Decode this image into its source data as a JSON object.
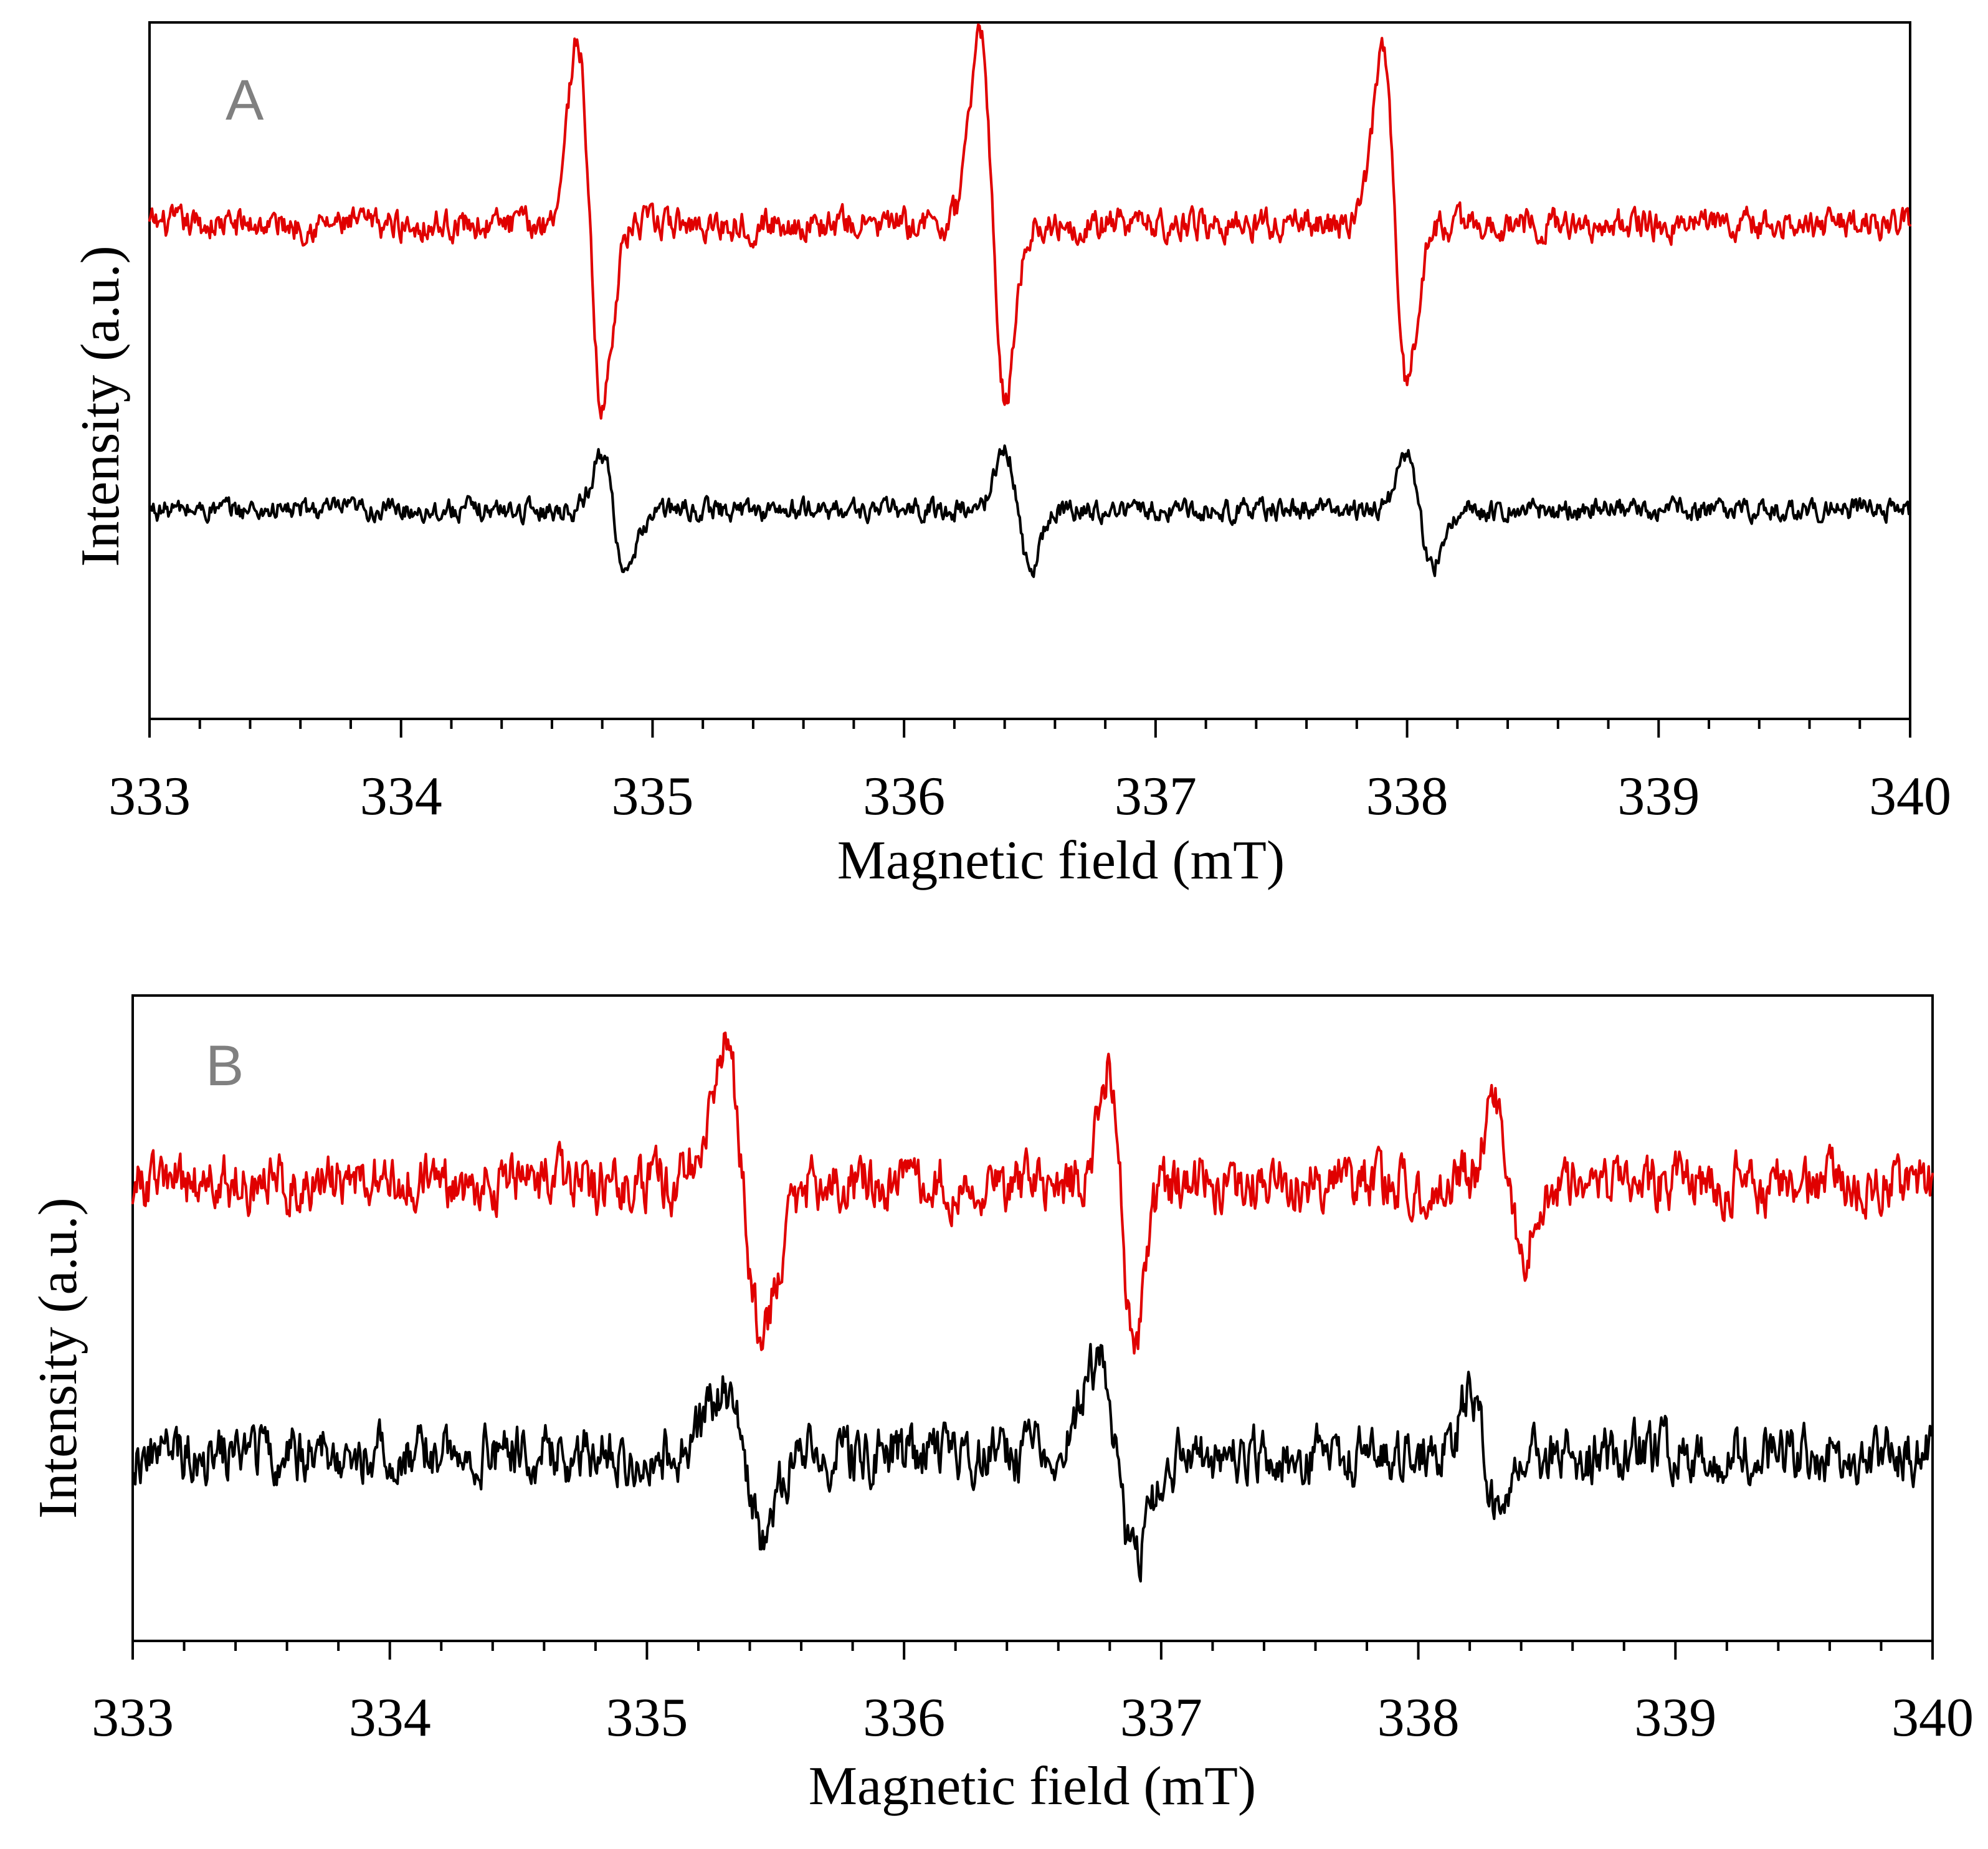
{
  "chart_data": [
    {
      "type": "line",
      "panel_label": "A",
      "xlabel": "Magnetic field (mT)",
      "ylabel": "Intensity (a.u.)",
      "xlim": [
        333,
        340
      ],
      "ylim": [
        -1,
        1
      ],
      "x_ticks": [
        "333",
        "334",
        "335",
        "336",
        "337",
        "338",
        "339",
        "340"
      ],
      "minor_ticks_per_major": 5,
      "grid": false,
      "legend": "none",
      "y_tick_labels": false,
      "series": [
        {
          "name": "upper trace",
          "color": "#e00000",
          "baseline": 0.42,
          "noise_amplitude": 0.035,
          "peaks": [
            {
              "x_max": 334.7,
              "x_min": 334.8,
              "max": 0.95,
              "min": -0.1
            },
            {
              "x_max": 336.3,
              "x_min": 336.4,
              "max": 1.0,
              "min": -0.06
            },
            {
              "x_max": 337.9,
              "x_min": 338.0,
              "max": 0.92,
              "min": -0.02
            }
          ]
        },
        {
          "name": "lower trace",
          "color": "#000000",
          "baseline": -0.4,
          "noise_amplitude": 0.025,
          "peaks": [
            {
              "x_max": 334.8,
              "x_min": 334.9,
              "max": -0.25,
              "min": -0.6
            },
            {
              "x_max": 336.4,
              "x_min": 336.5,
              "max": -0.22,
              "min": -0.56
            },
            {
              "x_max": 338.0,
              "x_min": 338.1,
              "max": -0.24,
              "min": -0.57
            }
          ]
        }
      ]
    },
    {
      "type": "line",
      "panel_label": "B",
      "xlabel": "Magnetic field (mT)",
      "ylabel": "Intensity (a.u.)",
      "xlim": [
        333,
        340
      ],
      "ylim": [
        -1,
        1
      ],
      "x_ticks": [
        "333",
        "334",
        "335",
        "336",
        "337",
        "338",
        "339",
        "340"
      ],
      "minor_ticks_per_major": 5,
      "grid": false,
      "legend": "none",
      "y_tick_labels": false,
      "series": [
        {
          "name": "upper trace",
          "color": "#e00000",
          "baseline": 0.42,
          "noise_amplitude": 0.07,
          "peaks": [
            {
              "x_max": 335.3,
              "x_min": 335.45,
              "max": 0.83,
              "min": -0.04
            },
            {
              "x_max": 336.8,
              "x_min": 336.9,
              "max": 0.71,
              "min": -0.15
            },
            {
              "x_max": 338.3,
              "x_min": 338.4,
              "max": 0.65,
              "min": 0.2
            }
          ]
        },
        {
          "name": "lower trace",
          "color": "#000000",
          "baseline": -0.42,
          "noise_amplitude": 0.07,
          "peaks": [
            {
              "x_max": 335.3,
              "x_min": 335.45,
              "max": -0.22,
              "min": -0.68
            },
            {
              "x_max": 336.75,
              "x_min": 336.9,
              "max": -0.15,
              "min": -0.76
            },
            {
              "x_max": 338.2,
              "x_min": 338.3,
              "max": -0.2,
              "min": -0.55
            }
          ]
        }
      ]
    }
  ]
}
